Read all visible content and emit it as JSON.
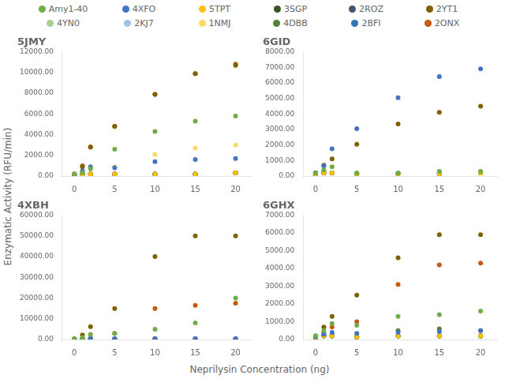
{
  "chart_data": {
    "type": "scatter",
    "xlabel": "Neprilysin Concentration (ng)",
    "ylabel": "Enzymatic Activity (RFU/min)",
    "legend": "top",
    "grid": false,
    "subplots": [
      {
        "title": "5JMY",
        "type": "scatter",
        "x": [
          0,
          1,
          2,
          5,
          10,
          15,
          20
        ],
        "xlim": [
          -1.5,
          22
        ],
        "xticks": [
          0,
          5,
          10,
          15,
          20
        ],
        "ylim": [
          0,
          12000
        ],
        "yticks": [
          {
            "value": 0,
            "label": "0.00"
          },
          {
            "value": 2000,
            "label": "2000.00"
          },
          {
            "value": 4000,
            "label": "4000.00"
          },
          {
            "value": 6000,
            "label": "6000.00"
          },
          {
            "value": 8000,
            "label": "8000.00"
          },
          {
            "value": 10000,
            "label": "10000.00"
          },
          {
            "value": 12000,
            "label": "12000.00"
          }
        ],
        "series": [
          {
            "name": "Amy1-40",
            "color": "#70ad47",
            "values": [
              200,
              350,
              700,
              2600,
              4300,
              5300,
              5800
            ]
          },
          {
            "name": "4XFO",
            "color": "#4472c4",
            "values": [
              100,
              500,
              900,
              800,
              1400,
              1600,
              1700
            ]
          },
          {
            "name": "5TPT",
            "color": "#ffc000",
            "values": [
              100,
              200,
              200,
              200,
              200,
              200,
              300
            ]
          },
          {
            "name": "3SGP",
            "color": "#375623",
            "values": [
              100,
              200,
              200,
              200,
              200,
              200,
              300
            ]
          },
          {
            "name": "2ROZ",
            "color": "#44546a",
            "values": [
              100,
              200,
              200,
              200,
              200,
              200,
              300
            ]
          },
          {
            "name": "2YT1",
            "color": "#7f6000",
            "values": [
              200,
              900,
              2800,
              4800,
              7900,
              9900,
              10700
            ]
          },
          {
            "name": "4YN0",
            "color": "#a9d18e",
            "values": [
              100,
              200,
              200,
              200,
              200,
              200,
              300
            ]
          },
          {
            "name": "2KJ7",
            "color": "#9dc3e6",
            "values": [
              100,
              200,
              200,
              200,
              200,
              200,
              300
            ]
          },
          {
            "name": "1NMJ",
            "color": "#ffd966",
            "values": [
              100,
              200,
              200,
              900,
              2100,
              2700,
              3000
            ]
          },
          {
            "name": "4DBB",
            "color": "#548235",
            "values": [
              100,
              200,
              200,
              200,
              200,
              200,
              300
            ]
          },
          {
            "name": "2BFI",
            "color": "#2e75b6",
            "values": [
              100,
              200,
              200,
              200,
              200,
              200,
              300
            ]
          },
          {
            "name": "2ONX",
            "color": "#c55a11",
            "values": [
              200,
              1000,
              2800,
              4800,
              7900,
              9900,
              10800
            ]
          }
        ]
      },
      {
        "title": "6GID",
        "type": "scatter",
        "x": [
          0,
          1,
          2,
          5,
          10,
          15,
          20
        ],
        "xlim": [
          -1.5,
          22
        ],
        "xticks": [
          0,
          5,
          10,
          15,
          20
        ],
        "ylim": [
          0,
          8000
        ],
        "yticks": [
          {
            "value": 0,
            "label": "0.00"
          },
          {
            "value": 1000,
            "label": "1000.00"
          },
          {
            "value": 2000,
            "label": "2000.00"
          },
          {
            "value": 3000,
            "label": "3000.00"
          },
          {
            "value": 4000,
            "label": "4000.00"
          },
          {
            "value": 5000,
            "label": "5000.00"
          },
          {
            "value": 6000,
            "label": "6000.00"
          },
          {
            "value": 7000,
            "label": "7000.00"
          },
          {
            "value": 8000,
            "label": "8000.00"
          }
        ],
        "series": [
          {
            "name": "Amy1-40",
            "color": "#70ad47",
            "values": [
              200,
              400,
              600,
              200,
              200,
              300,
              300
            ]
          },
          {
            "name": "4XFO",
            "color": "#4472c4",
            "values": [
              200,
              650,
              1750,
              3050,
              5050,
              6400,
              6900
            ]
          },
          {
            "name": "5TPT",
            "color": "#ffc000",
            "values": [
              100,
              200,
              200,
              150,
              150,
              150,
              200
            ]
          },
          {
            "name": "3SGP",
            "color": "#375623",
            "values": [
              100,
              200,
              200,
              150,
              150,
              150,
              200
            ]
          },
          {
            "name": "2ROZ",
            "color": "#44546a",
            "values": [
              100,
              200,
              200,
              150,
              150,
              150,
              200
            ]
          },
          {
            "name": "2YT1",
            "color": "#7f6000",
            "values": [
              200,
              700,
              1100,
              2050,
              3350,
              4100,
              4500
            ]
          },
          {
            "name": "4YN0",
            "color": "#a9d18e",
            "values": [
              100,
              200,
              200,
              150,
              150,
              150,
              200
            ]
          },
          {
            "name": "2KJ7",
            "color": "#9dc3e6",
            "values": [
              100,
              200,
              200,
              150,
              150,
              150,
              200
            ]
          },
          {
            "name": "1NMJ",
            "color": "#ffd966",
            "values": [
              100,
              200,
              200,
              150,
              150,
              150,
              200
            ]
          },
          {
            "name": "4DBB",
            "color": "#548235",
            "values": [
              100,
              200,
              200,
              150,
              150,
              150,
              200
            ]
          },
          {
            "name": "2BFI",
            "color": "#2e75b6",
            "values": [
              100,
              200,
              200,
              150,
              150,
              150,
              200
            ]
          },
          {
            "name": "2ONX",
            "color": "#c55a11",
            "values": [
              100,
              200,
              200,
              150,
              150,
              150,
              200
            ]
          }
        ]
      },
      {
        "title": "4XBH",
        "type": "scatter",
        "x": [
          0,
          1,
          2,
          5,
          10,
          15,
          20
        ],
        "xlim": [
          -1.5,
          22
        ],
        "xticks": [
          0,
          5,
          10,
          15,
          20
        ],
        "ylim": [
          0,
          60000
        ],
        "yticks": [
          {
            "value": 0,
            "label": "0.00"
          },
          {
            "value": 10000,
            "label": "10000.00"
          },
          {
            "value": 20000,
            "label": "20000.00"
          },
          {
            "value": 30000,
            "label": "30000.00"
          },
          {
            "value": 40000,
            "label": "40000.00"
          },
          {
            "value": 50000,
            "label": "50000.00"
          },
          {
            "value": 60000,
            "label": "60000.00"
          }
        ],
        "series": [
          {
            "name": "Amy1-40",
            "color": "#70ad47",
            "values": [
              300,
              1000,
              2500,
              3000,
              5000,
              8000,
              20000
            ]
          },
          {
            "name": "4XFO",
            "color": "#4472c4",
            "values": [
              200,
              300,
              500,
              500,
              500,
              500,
              500
            ]
          },
          {
            "name": "5TPT",
            "color": "#ffc000",
            "values": [
              100,
              200,
              200,
              200,
              200,
              200,
              200
            ]
          },
          {
            "name": "3SGP",
            "color": "#375623",
            "values": [
              100,
              200,
              200,
              200,
              200,
              200,
              200
            ]
          },
          {
            "name": "2ROZ",
            "color": "#44546a",
            "values": [
              100,
              200,
              200,
              200,
              200,
              200,
              200
            ]
          },
          {
            "name": "2YT1",
            "color": "#7f6000",
            "values": [
              300,
              2200,
              6200,
              15000,
              40000,
              50000,
              50000
            ]
          },
          {
            "name": "4YN0",
            "color": "#a9d18e",
            "values": [
              100,
              200,
              200,
              200,
              200,
              200,
              200
            ]
          },
          {
            "name": "2KJ7",
            "color": "#9dc3e6",
            "values": [
              100,
              200,
              200,
              200,
              200,
              200,
              200
            ]
          },
          {
            "name": "1NMJ",
            "color": "#ffd966",
            "values": [
              100,
              200,
              200,
              200,
              200,
              200,
              200
            ]
          },
          {
            "name": "4DBB",
            "color": "#548235",
            "values": [
              100,
              200,
              200,
              200,
              200,
              200,
              200
            ]
          },
          {
            "name": "2BFI",
            "color": "#2e75b6",
            "values": [
              100,
              200,
              200,
              200,
              200,
              200,
              200
            ]
          },
          {
            "name": "2ONX",
            "color": "#c55a11",
            "values": [
              200,
              500,
              700,
              3000,
              15000,
              16500,
              17500
            ]
          }
        ]
      },
      {
        "title": "6GHX",
        "type": "scatter",
        "x": [
          0,
          1,
          2,
          5,
          10,
          15,
          20
        ],
        "xlim": [
          -1.5,
          22
        ],
        "xticks": [
          0,
          5,
          10,
          15,
          20
        ],
        "ylim": [
          0,
          7000
        ],
        "yticks": [
          {
            "value": 0,
            "label": "0.00"
          },
          {
            "value": 1000,
            "label": "1000.00"
          },
          {
            "value": 2000,
            "label": "2000.00"
          },
          {
            "value": 3000,
            "label": "3000.00"
          },
          {
            "value": 4000,
            "label": "4000.00"
          },
          {
            "value": 5000,
            "label": "5000.00"
          },
          {
            "value": 6000,
            "label": "6000.00"
          },
          {
            "value": 7000,
            "label": "7000.00"
          }
        ],
        "series": [
          {
            "name": "Amy1-40",
            "color": "#70ad47",
            "values": [
              200,
              500,
              900,
              800,
              1300,
              1400,
              1600
            ]
          },
          {
            "name": "4XFO",
            "color": "#4472c4",
            "values": [
              150,
              300,
              400,
              350,
              400,
              450,
              500
            ]
          },
          {
            "name": "5TPT",
            "color": "#ffc000",
            "values": [
              100,
              200,
              200,
              150,
              200,
              200,
              200
            ]
          },
          {
            "name": "3SGP",
            "color": "#375623",
            "values": [
              100,
              200,
              200,
              150,
              200,
              200,
              200
            ]
          },
          {
            "name": "2ROZ",
            "color": "#44546a",
            "values": [
              100,
              200,
              200,
              150,
              200,
              200,
              200
            ]
          },
          {
            "name": "2YT1",
            "color": "#7f6000",
            "values": [
              200,
              700,
              1300,
              2500,
              4600,
              5900,
              5900
            ]
          },
          {
            "name": "4YN0",
            "color": "#a9d18e",
            "values": [
              100,
              200,
              200,
              150,
              200,
              200,
              200
            ]
          },
          {
            "name": "2KJ7",
            "color": "#9dc3e6",
            "values": [
              100,
              200,
              200,
              150,
              200,
              200,
              200
            ]
          },
          {
            "name": "1NMJ",
            "color": "#ffd966",
            "values": [
              100,
              200,
              200,
              150,
              200,
              200,
              200
            ]
          },
          {
            "name": "4DBB",
            "color": "#548235",
            "values": [
              100,
              200,
              300,
              150,
              500,
              600,
              500
            ]
          },
          {
            "name": "2BFI",
            "color": "#2e75b6",
            "values": [
              100,
              200,
              200,
              150,
              200,
              200,
              200
            ]
          },
          {
            "name": "2ONX",
            "color": "#c55a11",
            "values": [
              150,
              400,
              700,
              1000,
              3100,
              4200,
              4300
            ]
          }
        ]
      }
    ]
  }
}
